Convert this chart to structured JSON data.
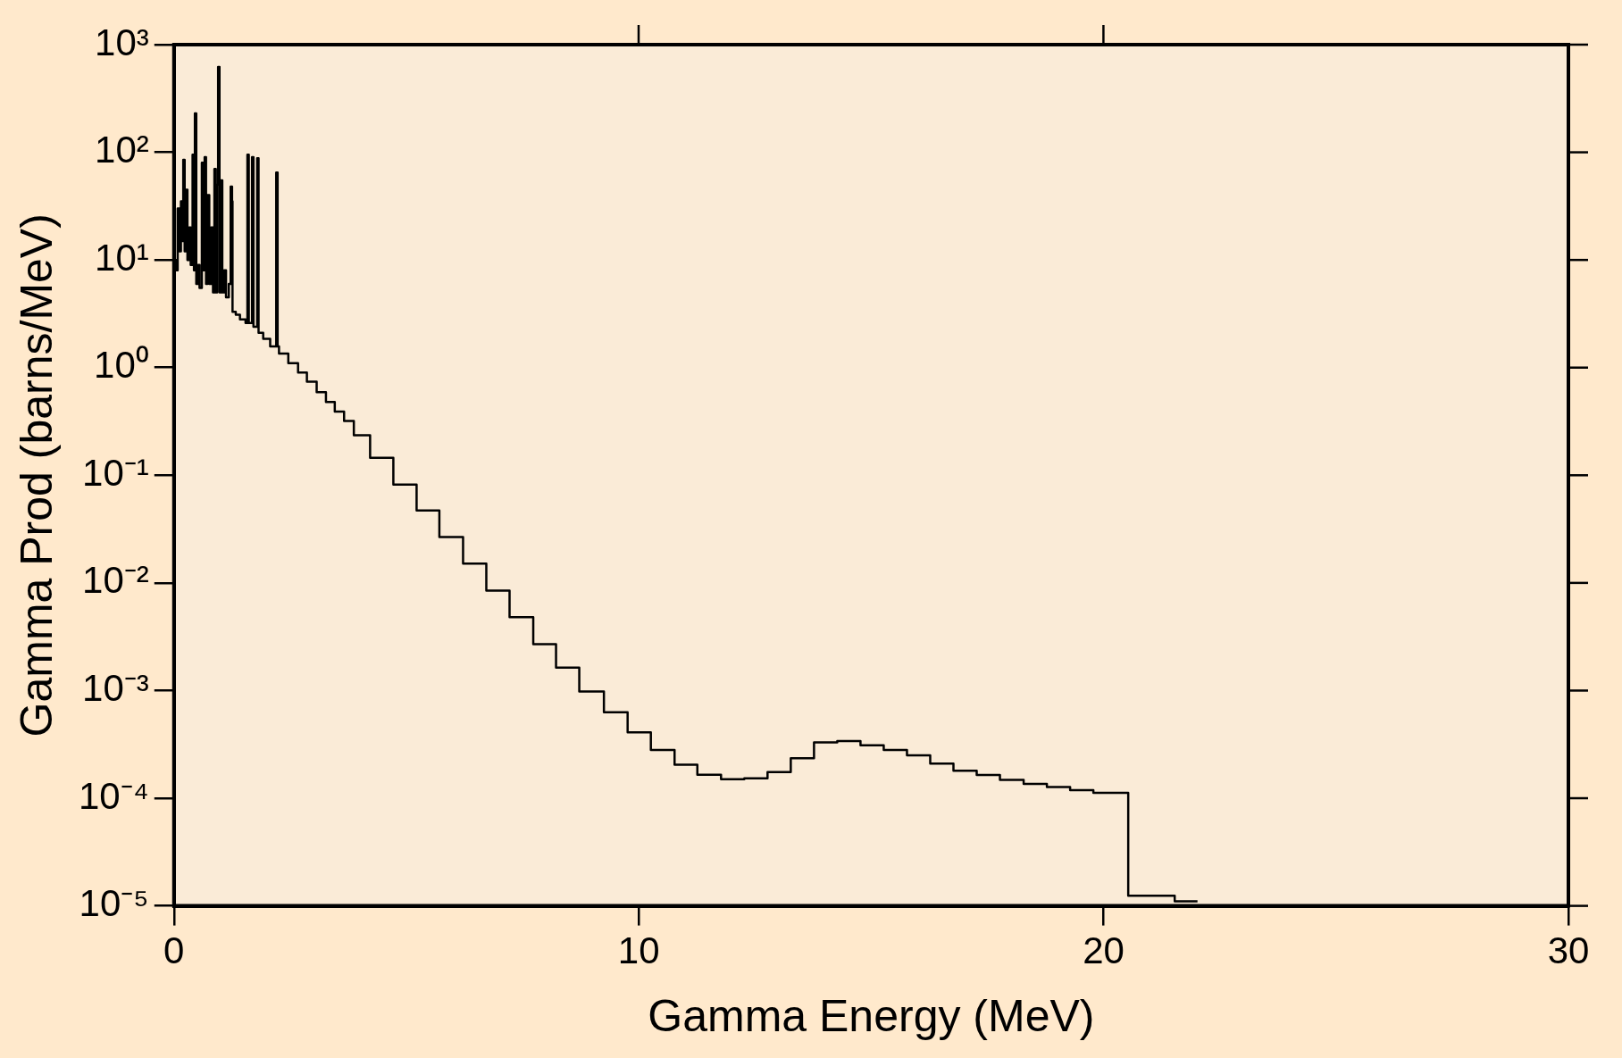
{
  "chart_data": {
    "type": "step",
    "xlabel": "Gamma Energy (MeV)",
    "ylabel": "Gamma Prod (barns/MeV)",
    "log": "y",
    "xlim": [
      0,
      30
    ],
    "ylim": [
      1e-05,
      1000
    ],
    "xticks": [
      0,
      10,
      20,
      30
    ],
    "yticks": [
      {
        "value": 1000,
        "label": "10³"
      },
      {
        "value": 100,
        "label": "10²"
      },
      {
        "value": 10,
        "label": "10¹"
      },
      {
        "value": 1,
        "label": "10⁰"
      },
      {
        "value": 0.1,
        "label": "10⁻¹"
      },
      {
        "value": 0.01,
        "label": "10⁻²"
      },
      {
        "value": 0.001,
        "label": "10⁻³"
      },
      {
        "value": 0.0001,
        "label": "10⁻⁴"
      },
      {
        "value": 1e-05,
        "label": "10⁻⁵"
      }
    ],
    "series": [
      {
        "color": "#000000",
        "x": [
          0,
          0.05,
          0.08,
          0.12,
          0.15,
          0.18,
          0.2,
          0.23,
          0.26,
          0.29,
          0.33,
          0.36,
          0.4,
          0.43,
          0.45,
          0.48,
          0.52,
          0.55,
          0.6,
          0.63,
          0.66,
          0.69,
          0.72,
          0.76,
          0.8,
          0.84,
          0.87,
          0.9,
          0.93,
          0.95,
          0.98,
          1.01,
          1.04,
          1.08,
          1.12,
          1.18,
          1.22,
          1.25,
          1.26,
          1.33,
          1.42,
          1.54,
          1.58,
          1.61,
          1.68,
          1.71,
          1.79,
          1.82,
          1.92,
          2.07,
          2.2,
          2.23,
          2.26,
          2.46,
          2.67,
          2.86,
          3.07,
          3.27,
          3.46,
          3.66,
          3.87,
          4.22,
          4.72,
          5.22,
          5.71,
          6.22,
          6.72,
          7.22,
          7.73,
          8.22,
          8.72,
          9.25,
          9.76,
          10.26,
          10.77,
          11.26,
          11.77,
          12.27,
          12.77,
          13.27,
          13.77,
          14.27,
          14.77,
          15.27,
          15.77,
          16.27,
          16.77,
          17.27,
          17.77,
          18.28,
          18.78,
          19.28,
          19.78,
          20.53,
          21.53,
          22.02
        ],
        "values": [
          10,
          8,
          30,
          12,
          35,
          15,
          85,
          12,
          45,
          10,
          20,
          9,
          95,
          8,
          230,
          6,
          9,
          5.5,
          80,
          8,
          90,
          6,
          40,
          6,
          20,
          5,
          70,
          5,
          50,
          620,
          5,
          55,
          5,
          8,
          4.5,
          6,
          48,
          35,
          3.3,
          3.1,
          2.8,
          2.6,
          95,
          2.6,
          90,
          2.4,
          88,
          2.1,
          1.85,
          1.57,
          65,
          1.57,
          1.35,
          1.1,
          0.9,
          0.74,
          0.59,
          0.48,
          0.39,
          0.32,
          0.235,
          0.145,
          0.082,
          0.047,
          0.0267,
          0.0151,
          0.0085,
          0.0048,
          0.0027,
          0.00163,
          0.00098,
          0.00063,
          0.00041,
          0.00028,
          0.000205,
          0.000165,
          0.00015,
          0.000153,
          0.000175,
          0.000235,
          0.00033,
          0.00034,
          0.00031,
          0.00028,
          0.00025,
          0.00021,
          0.00018,
          0.000164,
          0.000148,
          0.000136,
          0.000127,
          0.000119,
          0.000112,
          1.24e-05,
          1.1e-05,
          1.1e-05
        ]
      }
    ]
  }
}
